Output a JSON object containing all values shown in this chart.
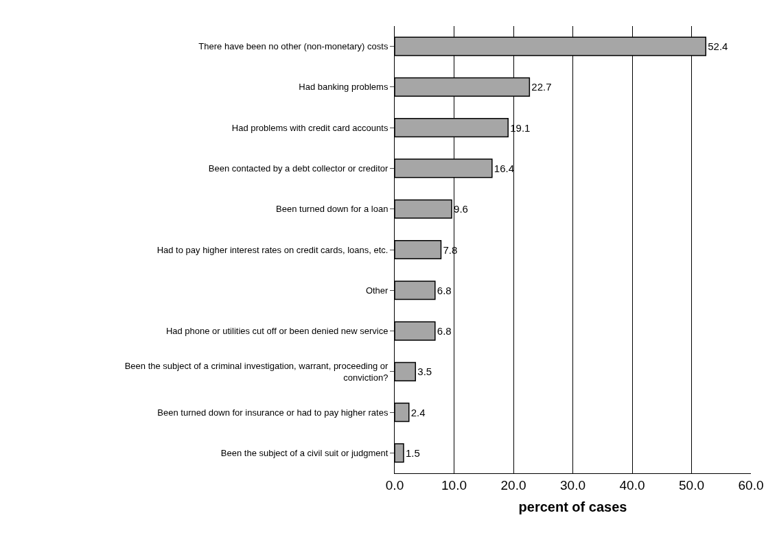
{
  "chart_data": {
    "type": "bar",
    "orientation": "horizontal",
    "xlabel": "percent of cases",
    "categories": [
      "There have been no other (non-monetary) costs",
      "Had banking problems",
      "Had problems with credit card accounts",
      "Been contacted by a debt collector or creditor",
      "Been turned down for a loan",
      "Had to pay higher interest rates on credit cards, loans, etc.",
      "Other",
      "Had phone or utilities cut off or been denied new service",
      "Been the subject of a criminal investigation, warrant, proceeding or\nconviction?",
      "Been turned down for insurance or had to pay higher rates",
      "Been the subject of a civil suit or judgment"
    ],
    "values": [
      52.4,
      22.7,
      19.1,
      16.4,
      9.6,
      7.8,
      6.8,
      6.8,
      3.5,
      2.4,
      1.5
    ],
    "color": "#a6a6a6",
    "data_labels": true,
    "grid": "x",
    "xlim": [
      0,
      60
    ],
    "xticks": [
      {
        "value": 0,
        "label": "0.0"
      },
      {
        "value": 10,
        "label": "10.0"
      },
      {
        "value": 20,
        "label": "20.0"
      },
      {
        "value": 30,
        "label": "30.0"
      },
      {
        "value": 40,
        "label": "40.0"
      },
      {
        "value": 50,
        "label": "50.0"
      },
      {
        "value": 60,
        "label": "60.0"
      }
    ]
  }
}
